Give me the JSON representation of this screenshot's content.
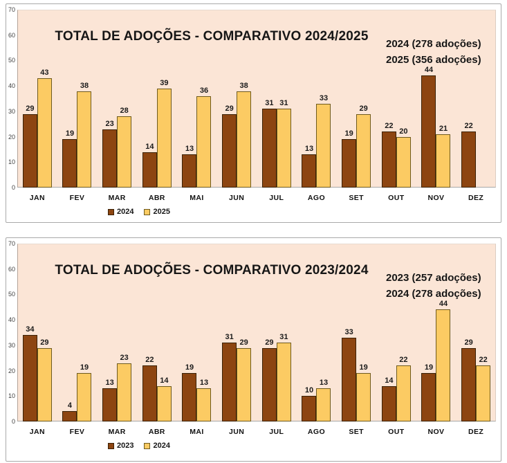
{
  "colors": {
    "series_dark": "#8D4511",
    "series_dark_border": "#3A2106",
    "series_light": "#FCCB63",
    "series_light_border": "#6E5A1E",
    "plot_bg": "#FBE5D6",
    "panel_border": "#A9A9A9"
  },
  "chart_data": [
    {
      "type": "bar",
      "title": "TOTAL DE ADOÇÕES - COMPARATIVO 2024/2025",
      "annotation_lines": [
        "2024 (278 adoções)",
        "2025 (356 adoções)"
      ],
      "categories": [
        "JAN",
        "FEV",
        "MAR",
        "ABR",
        "MAI",
        "JUN",
        "JUL",
        "AGO",
        "SET",
        "OUT",
        "NOV",
        "DEZ"
      ],
      "series": [
        {
          "name": "2024",
          "color_role": "dark",
          "values": [
            29,
            19,
            23,
            14,
            13,
            29,
            31,
            13,
            19,
            22,
            44,
            22
          ]
        },
        {
          "name": "2025",
          "color_role": "light",
          "values": [
            43,
            38,
            28,
            39,
            36,
            38,
            31,
            33,
            29,
            20,
            21,
            null
          ]
        }
      ],
      "ylim": [
        0,
        70
      ],
      "y_ticks": [
        70,
        60,
        50,
        40,
        30,
        20,
        10,
        0
      ],
      "grid": false,
      "data_labels": true,
      "legend_position": "bottom-left",
      "legend": [
        "2024",
        "2025"
      ]
    },
    {
      "type": "bar",
      "title": "TOTAL DE ADOÇÕES - COMPARATIVO 2023/2024",
      "annotation_lines": [
        "2023 (257 adoções)",
        "2024 (278 adoções)"
      ],
      "categories": [
        "JAN",
        "FEV",
        "MAR",
        "ABR",
        "MAI",
        "JUN",
        "JUL",
        "AGO",
        "SET",
        "OUT",
        "NOV",
        "DEZ"
      ],
      "series": [
        {
          "name": "2023",
          "color_role": "dark",
          "values": [
            34,
            4,
            13,
            22,
            19,
            31,
            29,
            10,
            33,
            14,
            19,
            29
          ]
        },
        {
          "name": "2024",
          "color_role": "light",
          "values": [
            29,
            19,
            23,
            14,
            13,
            29,
            31,
            13,
            19,
            22,
            44,
            22
          ]
        }
      ],
      "ylim": [
        0,
        70
      ],
      "y_ticks": [
        70,
        60,
        50,
        40,
        30,
        20,
        10,
        0
      ],
      "grid": false,
      "data_labels": true,
      "legend_position": "bottom-left",
      "legend": [
        "2023",
        "2024"
      ]
    }
  ]
}
